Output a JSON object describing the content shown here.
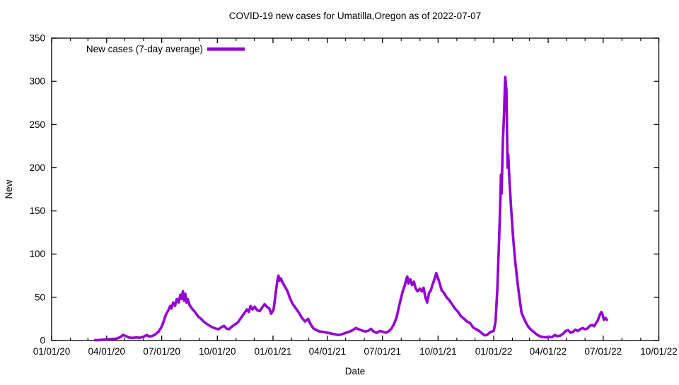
{
  "chart_data": {
    "type": "line",
    "title": "COVID-19 new cases for Umatilla,Oregon as of 2022-07-07",
    "xlabel": "Date",
    "ylabel": "New",
    "x_range": [
      "2020-01-01",
      "2022-10-01"
    ],
    "ylim": [
      0,
      350
    ],
    "grid": false,
    "legend_position": "top-left",
    "line_color": "#9400D3",
    "y_ticks": [
      0,
      50,
      100,
      150,
      200,
      250,
      300,
      350
    ],
    "x_major_ticks": [
      {
        "date": "2020-01-01",
        "label": "01/01/20"
      },
      {
        "date": "2020-04-01",
        "label": "04/01/20"
      },
      {
        "date": "2020-07-01",
        "label": "07/01/20"
      },
      {
        "date": "2020-10-01",
        "label": "10/01/20"
      },
      {
        "date": "2021-01-01",
        "label": "01/01/21"
      },
      {
        "date": "2021-04-01",
        "label": "04/01/21"
      },
      {
        "date": "2021-07-01",
        "label": "07/01/21"
      },
      {
        "date": "2021-10-01",
        "label": "10/01/21"
      },
      {
        "date": "2022-01-01",
        "label": "01/01/22"
      },
      {
        "date": "2022-04-01",
        "label": "04/01/22"
      },
      {
        "date": "2022-07-01",
        "label": "07/01/22"
      },
      {
        "date": "2022-10-01",
        "label": "10/01/22"
      }
    ],
    "series": [
      {
        "name": "New cases (7-day average)",
        "color": "#9400D3",
        "points": [
          [
            "2020-03-13",
            0.3
          ],
          [
            "2020-03-20",
            0.6
          ],
          [
            "2020-03-27",
            1.0
          ],
          [
            "2020-04-03",
            1.4
          ],
          [
            "2020-04-10",
            1.7
          ],
          [
            "2020-04-17",
            2.1
          ],
          [
            "2020-04-24",
            4.0
          ],
          [
            "2020-04-28",
            6.5
          ],
          [
            "2020-05-03",
            5.0
          ],
          [
            "2020-05-08",
            3.4
          ],
          [
            "2020-05-14",
            3.0
          ],
          [
            "2020-05-20",
            3.6
          ],
          [
            "2020-05-26",
            3.1
          ],
          [
            "2020-06-01",
            4.3
          ],
          [
            "2020-06-06",
            6.3
          ],
          [
            "2020-06-11",
            4.6
          ],
          [
            "2020-06-16",
            5.4
          ],
          [
            "2020-06-21",
            7.4
          ],
          [
            "2020-06-26",
            10.3
          ],
          [
            "2020-07-01",
            16
          ],
          [
            "2020-07-04",
            22
          ],
          [
            "2020-07-08",
            30
          ],
          [
            "2020-07-12",
            35
          ],
          [
            "2020-07-15",
            40
          ],
          [
            "2020-07-17",
            37
          ],
          [
            "2020-07-20",
            44
          ],
          [
            "2020-07-23",
            40
          ],
          [
            "2020-07-26",
            48
          ],
          [
            "2020-07-29",
            44
          ],
          [
            "2020-08-01",
            53
          ],
          [
            "2020-08-03",
            48
          ],
          [
            "2020-08-05",
            57
          ],
          [
            "2020-08-07",
            46
          ],
          [
            "2020-08-09",
            54
          ],
          [
            "2020-08-11",
            44
          ],
          [
            "2020-08-13",
            48
          ],
          [
            "2020-08-16",
            41
          ],
          [
            "2020-08-20",
            37
          ],
          [
            "2020-08-25",
            33
          ],
          [
            "2020-08-30",
            28
          ],
          [
            "2020-09-04",
            25
          ],
          [
            "2020-09-10",
            21
          ],
          [
            "2020-09-16",
            18
          ],
          [
            "2020-09-22",
            15.5
          ],
          [
            "2020-09-28",
            14
          ],
          [
            "2020-10-03",
            13
          ],
          [
            "2020-10-08",
            15.5
          ],
          [
            "2020-10-12",
            17
          ],
          [
            "2020-10-16",
            14
          ],
          [
            "2020-10-20",
            13
          ],
          [
            "2020-10-25",
            16
          ],
          [
            "2020-10-30",
            18.5
          ],
          [
            "2020-11-04",
            21
          ],
          [
            "2020-11-09",
            26
          ],
          [
            "2020-11-14",
            31
          ],
          [
            "2020-11-19",
            36
          ],
          [
            "2020-11-22",
            33
          ],
          [
            "2020-11-25",
            40
          ],
          [
            "2020-11-28",
            36
          ],
          [
            "2020-12-02",
            39
          ],
          [
            "2020-12-06",
            35
          ],
          [
            "2020-12-10",
            34
          ],
          [
            "2020-12-14",
            38
          ],
          [
            "2020-12-18",
            42
          ],
          [
            "2020-12-22",
            39
          ],
          [
            "2020-12-26",
            37
          ],
          [
            "2020-12-29",
            31
          ],
          [
            "2021-01-02",
            36
          ],
          [
            "2021-01-05",
            52
          ],
          [
            "2021-01-08",
            68
          ],
          [
            "2021-01-10",
            75
          ],
          [
            "2021-01-12",
            69
          ],
          [
            "2021-01-14",
            72
          ],
          [
            "2021-01-17",
            67
          ],
          [
            "2021-01-21",
            62
          ],
          [
            "2021-01-25",
            57
          ],
          [
            "2021-01-29",
            49
          ],
          [
            "2021-02-02",
            43
          ],
          [
            "2021-02-06",
            39
          ],
          [
            "2021-02-10",
            35
          ],
          [
            "2021-02-14",
            31
          ],
          [
            "2021-02-18",
            26
          ],
          [
            "2021-02-23",
            22
          ],
          [
            "2021-02-28",
            25
          ],
          [
            "2021-03-04",
            19
          ],
          [
            "2021-03-09",
            14
          ],
          [
            "2021-03-14",
            12
          ],
          [
            "2021-03-19",
            10.5
          ],
          [
            "2021-03-25",
            10
          ],
          [
            "2021-04-01",
            9
          ],
          [
            "2021-04-08",
            8
          ],
          [
            "2021-04-14",
            7
          ],
          [
            "2021-04-20",
            6.3
          ],
          [
            "2021-04-26",
            7.5
          ],
          [
            "2021-05-02",
            9
          ],
          [
            "2021-05-08",
            10.5
          ],
          [
            "2021-05-13",
            12
          ],
          [
            "2021-05-18",
            14.5
          ],
          [
            "2021-05-23",
            13
          ],
          [
            "2021-05-28",
            11.5
          ],
          [
            "2021-06-02",
            10.5
          ],
          [
            "2021-06-07",
            11
          ],
          [
            "2021-06-12",
            13.5
          ],
          [
            "2021-06-17",
            10
          ],
          [
            "2021-06-22",
            9
          ],
          [
            "2021-06-27",
            11
          ],
          [
            "2021-07-02",
            10
          ],
          [
            "2021-07-07",
            9
          ],
          [
            "2021-07-12",
            11
          ],
          [
            "2021-07-16",
            14
          ],
          [
            "2021-07-20",
            19
          ],
          [
            "2021-07-24",
            26
          ],
          [
            "2021-07-28",
            38
          ],
          [
            "2021-08-01",
            50
          ],
          [
            "2021-08-04",
            58
          ],
          [
            "2021-08-07",
            64
          ],
          [
            "2021-08-09",
            70
          ],
          [
            "2021-08-11",
            74
          ],
          [
            "2021-08-13",
            66
          ],
          [
            "2021-08-16",
            71
          ],
          [
            "2021-08-19",
            64
          ],
          [
            "2021-08-22",
            68
          ],
          [
            "2021-08-25",
            60
          ],
          [
            "2021-08-28",
            57
          ],
          [
            "2021-09-01",
            60
          ],
          [
            "2021-09-04",
            57
          ],
          [
            "2021-09-07",
            61
          ],
          [
            "2021-09-10",
            50
          ],
          [
            "2021-09-13",
            44
          ],
          [
            "2021-09-16",
            55
          ],
          [
            "2021-09-19",
            58
          ],
          [
            "2021-09-22",
            65
          ],
          [
            "2021-09-25",
            71
          ],
          [
            "2021-09-28",
            78
          ],
          [
            "2021-10-01",
            72
          ],
          [
            "2021-10-04",
            65
          ],
          [
            "2021-10-07",
            58
          ],
          [
            "2021-10-11",
            55
          ],
          [
            "2021-10-15",
            50
          ],
          [
            "2021-10-19",
            47
          ],
          [
            "2021-10-24",
            42
          ],
          [
            "2021-10-29",
            37
          ],
          [
            "2021-11-03",
            33
          ],
          [
            "2021-11-08",
            28
          ],
          [
            "2021-11-13",
            25
          ],
          [
            "2021-11-18",
            22
          ],
          [
            "2021-11-23",
            20
          ],
          [
            "2021-11-28",
            15
          ],
          [
            "2021-12-03",
            13
          ],
          [
            "2021-12-08",
            11
          ],
          [
            "2021-12-13",
            8
          ],
          [
            "2021-12-17",
            6
          ],
          [
            "2021-12-21",
            6.5
          ],
          [
            "2021-12-25",
            9
          ],
          [
            "2021-12-29",
            10.5
          ],
          [
            "2022-01-01",
            11
          ],
          [
            "2022-01-04",
            22
          ],
          [
            "2022-01-07",
            60
          ],
          [
            "2022-01-10",
            120
          ],
          [
            "2022-01-12",
            165
          ],
          [
            "2022-01-13",
            192
          ],
          [
            "2022-01-14",
            170
          ],
          [
            "2022-01-16",
            228
          ],
          [
            "2022-01-18",
            262
          ],
          [
            "2022-01-20",
            305
          ],
          [
            "2022-01-22",
            290
          ],
          [
            "2022-01-24",
            200
          ],
          [
            "2022-01-25",
            215
          ],
          [
            "2022-01-27",
            185
          ],
          [
            "2022-01-30",
            150
          ],
          [
            "2022-02-02",
            120
          ],
          [
            "2022-02-05",
            95
          ],
          [
            "2022-02-08",
            75
          ],
          [
            "2022-02-11",
            58
          ],
          [
            "2022-02-14",
            42
          ],
          [
            "2022-02-16",
            32
          ],
          [
            "2022-02-19",
            27
          ],
          [
            "2022-02-23",
            21
          ],
          [
            "2022-02-27",
            16
          ],
          [
            "2022-03-03",
            13
          ],
          [
            "2022-03-08",
            10
          ],
          [
            "2022-03-13",
            7
          ],
          [
            "2022-03-18",
            5
          ],
          [
            "2022-03-23",
            4
          ],
          [
            "2022-03-28",
            3.6
          ],
          [
            "2022-04-02",
            4.4
          ],
          [
            "2022-04-07",
            3.7
          ],
          [
            "2022-04-12",
            6.5
          ],
          [
            "2022-04-16",
            5
          ],
          [
            "2022-04-21",
            5.6
          ],
          [
            "2022-04-26",
            8
          ],
          [
            "2022-04-30",
            11
          ],
          [
            "2022-05-04",
            12
          ],
          [
            "2022-05-08",
            9
          ],
          [
            "2022-05-12",
            10
          ],
          [
            "2022-05-16",
            12.5
          ],
          [
            "2022-05-20",
            11
          ],
          [
            "2022-05-24",
            13
          ],
          [
            "2022-05-28",
            14.5
          ],
          [
            "2022-06-01",
            13
          ],
          [
            "2022-06-05",
            14
          ],
          [
            "2022-06-09",
            17
          ],
          [
            "2022-06-13",
            18
          ],
          [
            "2022-06-16",
            16.5
          ],
          [
            "2022-06-19",
            20
          ],
          [
            "2022-06-22",
            23
          ],
          [
            "2022-06-25",
            29
          ],
          [
            "2022-06-28",
            33
          ],
          [
            "2022-06-30",
            30
          ],
          [
            "2022-07-02",
            24
          ],
          [
            "2022-07-05",
            26
          ],
          [
            "2022-07-07",
            24
          ]
        ]
      }
    ]
  }
}
